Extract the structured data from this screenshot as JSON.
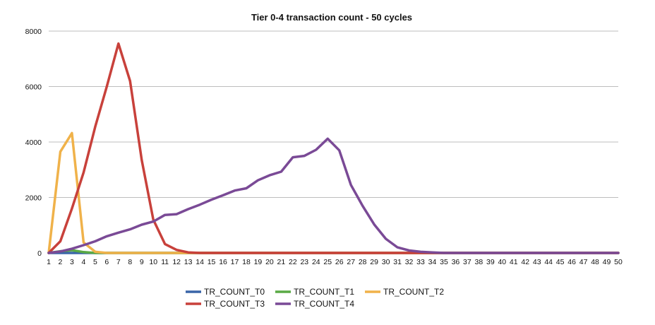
{
  "chart_data": {
    "type": "line",
    "title": "Tier 0-4 transaction count - 50 cycles",
    "xlabel": "",
    "ylabel": "",
    "x": [
      1,
      2,
      3,
      4,
      5,
      6,
      7,
      8,
      9,
      10,
      11,
      12,
      13,
      14,
      15,
      16,
      17,
      18,
      19,
      20,
      21,
      22,
      23,
      24,
      25,
      26,
      27,
      28,
      29,
      30,
      31,
      32,
      33,
      34,
      35,
      36,
      37,
      38,
      39,
      40,
      41,
      42,
      43,
      44,
      45,
      46,
      47,
      48,
      49,
      50
    ],
    "ylim": [
      0,
      8000
    ],
    "yticks": [
      0,
      2000,
      4000,
      6000,
      8000
    ],
    "grid": true,
    "legend_position": "bottom",
    "series": [
      {
        "name": "TR_COUNT_T0",
        "color": "#3a65a8",
        "values": [
          0,
          0,
          0,
          0,
          0,
          0,
          0,
          0,
          0,
          0,
          0,
          0,
          0,
          0,
          0,
          0,
          0,
          0,
          0,
          0,
          0,
          0,
          0,
          0,
          0,
          0,
          0,
          0,
          0,
          0,
          0,
          0,
          0,
          0,
          0,
          0,
          0,
          0,
          0,
          0,
          0,
          0,
          0,
          0,
          0,
          0,
          0,
          0,
          0,
          0
        ]
      },
      {
        "name": "TR_COUNT_T1",
        "color": "#5aaa45",
        "values": [
          0,
          60,
          100,
          30,
          0,
          0,
          0,
          0,
          0,
          0,
          0,
          0,
          0,
          0,
          0,
          0,
          0,
          0,
          0,
          0,
          0,
          0,
          0,
          0,
          0,
          0,
          0,
          0,
          0,
          0,
          0,
          0,
          0,
          0,
          0,
          0,
          0,
          0,
          0,
          0,
          0,
          0,
          0,
          0,
          0,
          0,
          0,
          0,
          0,
          0
        ]
      },
      {
        "name": "TR_COUNT_T2",
        "color": "#f0b24a",
        "values": [
          0,
          3650,
          4320,
          380,
          40,
          0,
          0,
          0,
          0,
          0,
          0,
          0,
          0,
          0,
          0,
          0,
          0,
          0,
          0,
          0,
          0,
          0,
          0,
          0,
          0,
          0,
          0,
          0,
          0,
          0,
          0,
          0,
          0,
          0,
          0,
          0,
          0,
          0,
          0,
          0,
          0,
          0,
          0,
          0,
          0,
          0,
          0,
          0,
          0,
          0
        ]
      },
      {
        "name": "TR_COUNT_T3",
        "color": "#c8413b",
        "values": [
          0,
          420,
          1600,
          2900,
          4550,
          6000,
          7550,
          6200,
          3350,
          1200,
          320,
          110,
          20,
          0,
          0,
          0,
          0,
          0,
          0,
          0,
          0,
          0,
          0,
          0,
          0,
          0,
          0,
          0,
          0,
          0,
          0,
          0,
          0,
          0,
          0,
          0,
          0,
          0,
          0,
          0,
          0,
          0,
          0,
          0,
          0,
          0,
          0,
          0,
          0,
          0
        ]
      },
      {
        "name": "TR_COUNT_T4",
        "color": "#7a4a96",
        "values": [
          0,
          50,
          150,
          280,
          420,
          600,
          730,
          850,
          1020,
          1130,
          1370,
          1400,
          1580,
          1740,
          1920,
          2080,
          2250,
          2330,
          2620,
          2800,
          2930,
          3450,
          3500,
          3720,
          4120,
          3700,
          2450,
          1700,
          1030,
          510,
          200,
          90,
          40,
          20,
          0,
          0,
          0,
          0,
          0,
          0,
          0,
          0,
          0,
          0,
          0,
          0,
          0,
          0,
          0,
          0
        ]
      }
    ]
  }
}
